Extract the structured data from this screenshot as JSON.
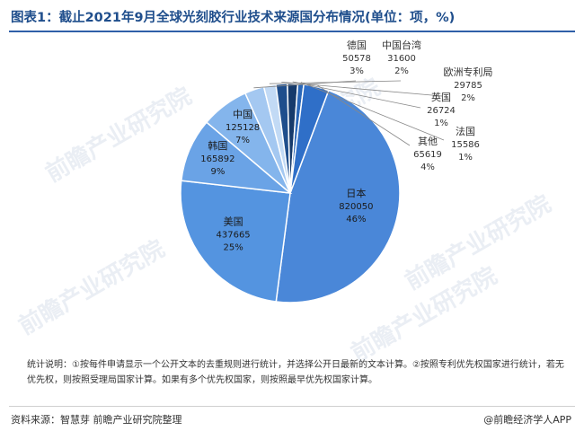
{
  "header": {
    "title": "图表1：截止2021年9月全球光刻胶行业技术来源国分布情况(单位：项，%)"
  },
  "chart_data": {
    "type": "pie",
    "title": "图表1：截止2021年9月全球光刻胶行业技术来源国分布情况(单位：项，%)",
    "slices": [
      {
        "label": "日本",
        "value": 820050,
        "percent": "46%",
        "color": "#4a87d8"
      },
      {
        "label": "美国",
        "value": 437665,
        "percent": "25%",
        "color": "#5494e0"
      },
      {
        "label": "韩国",
        "value": 165892,
        "percent": "9%",
        "color": "#6aa3e6"
      },
      {
        "label": "中国",
        "value": 125128,
        "percent": "7%",
        "color": "#84b5ec"
      },
      {
        "label": "德国",
        "value": 50578,
        "percent": "3%",
        "color": "#a4c8f1"
      },
      {
        "label": "中国台湾",
        "value": 31600,
        "percent": "2%",
        "color": "#c2daf5"
      },
      {
        "label": "欧洲专利局",
        "value": 29785,
        "percent": "2%",
        "color": "#1f4e8c"
      },
      {
        "label": "英国",
        "value": 26724,
        "percent": "1%",
        "color": "#163a6b"
      },
      {
        "label": "法国",
        "value": 15586,
        "percent": "1%",
        "color": "#2a67b8"
      },
      {
        "label": "其他",
        "value": 65619,
        "percent": "4%",
        "color": "#2f6fc8"
      }
    ]
  },
  "notes": {
    "text": "统计说明：①按每件申请显示一个公开文本的去重规则进行统计，并选择公开日最新的文本计算。②按照专利优先权国家进行统计，若无优先权，则按照受理局国家计算。如果有多个优先权国家，则按照最早优先权国家计算。"
  },
  "footer": {
    "source": "资料来源：智慧芽 前瞻产业研究院整理",
    "app": "@前瞻经济学人APP"
  }
}
